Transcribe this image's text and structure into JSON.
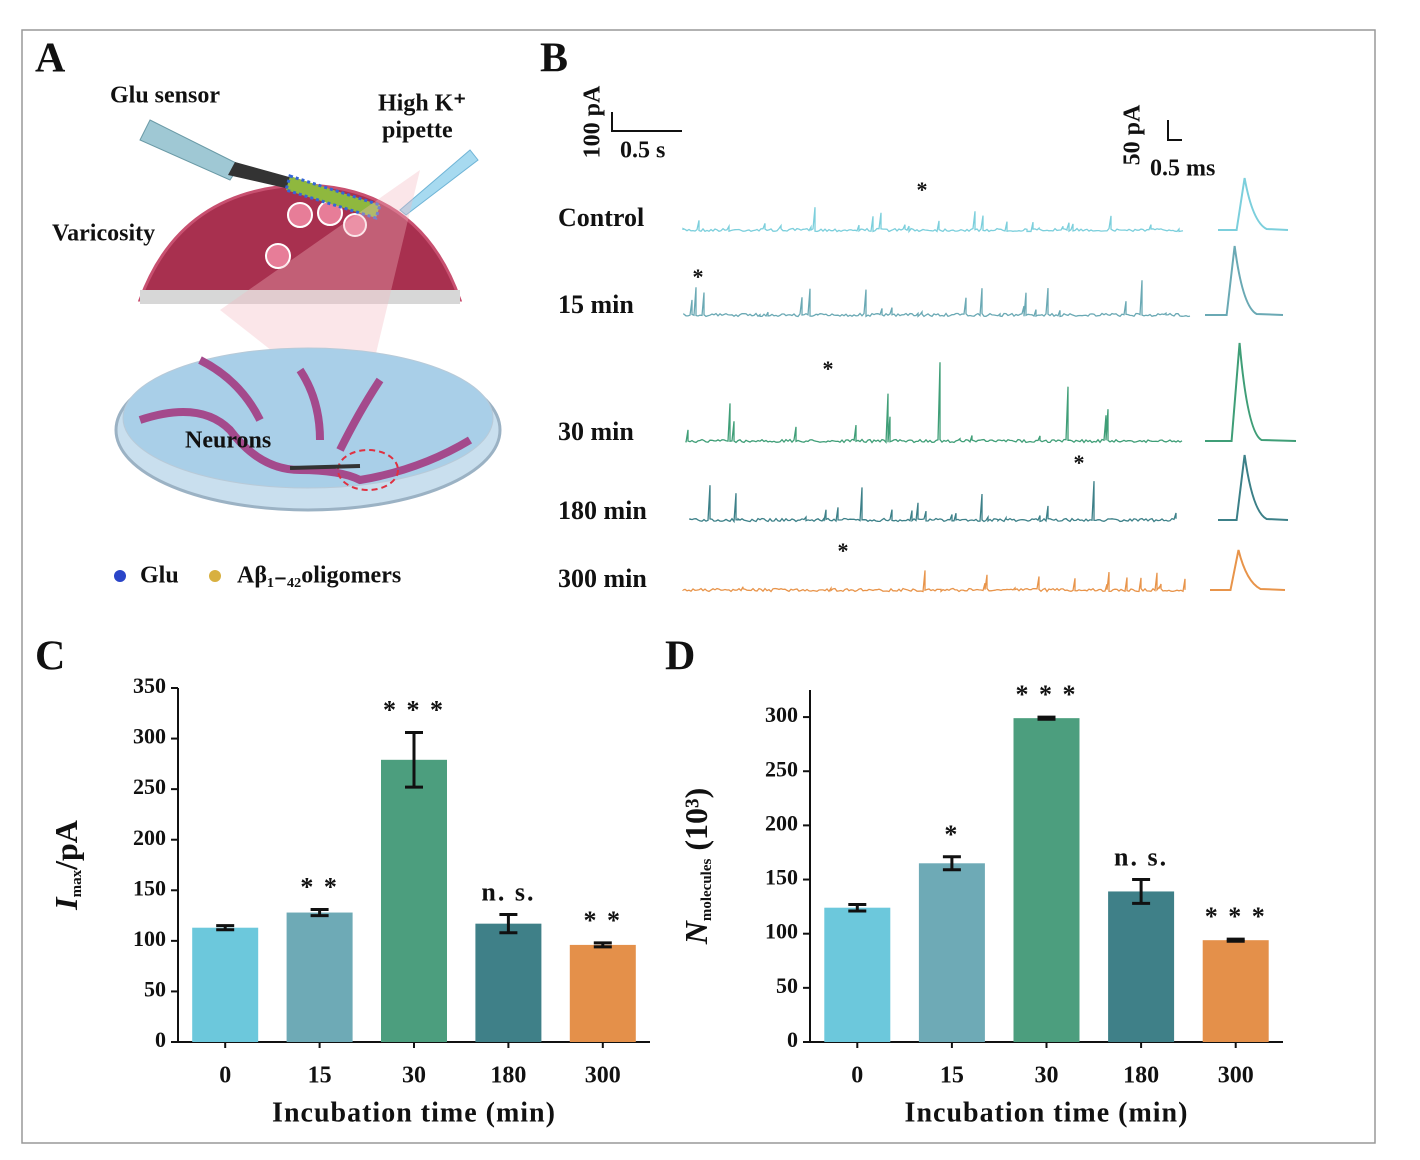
{
  "panel_labels": [
    "A",
    "B",
    "C",
    "D"
  ],
  "panel_a": {
    "sensor": "Glu sensor",
    "pipette_line1": "High K⁺",
    "pipette_line2": "pipette",
    "varicosity": "Varicosity",
    "neurons": "Neurons",
    "legend": [
      "Glu",
      "Aβ₁₋₄₂oligomers"
    ]
  },
  "panel_b": {
    "scale_trace": {
      "current": "100 pA",
      "time": "0.5 s"
    },
    "scale_spike": {
      "current": "50 pA",
      "time": "0.5 ms"
    },
    "traces": [
      {
        "label": "Control",
        "color": "#7ccfdc",
        "marker": "*"
      },
      {
        "label": "15 min",
        "color": "#6aa9b4",
        "marker": "*"
      },
      {
        "label": "30 min",
        "color": "#3f9e77",
        "marker": "*"
      },
      {
        "label": "180 min",
        "color": "#3c8088",
        "marker": "*"
      },
      {
        "label": "300 min",
        "color": "#e8944a",
        "marker": "*"
      }
    ]
  },
  "chart_data": [
    {
      "type": "bar",
      "categories": [
        "0",
        "15",
        "30",
        "180",
        "300"
      ],
      "values": [
        113,
        128,
        279,
        117,
        96
      ],
      "errors": [
        2,
        3,
        27,
        9,
        2
      ],
      "colors": [
        "#6cc8dc",
        "#6eaab6",
        "#4c9e7e",
        "#3f8088",
        "#e4904a"
      ],
      "annotations": [
        null,
        "* *",
        "* * *",
        "n. s.",
        "* *"
      ],
      "ylim": [
        0,
        350
      ],
      "yticks": [
        0,
        50,
        100,
        150,
        200,
        250,
        300,
        350
      ],
      "xlabel": "Incubation time (min)",
      "ylabel": {
        "symbol": "I",
        "subscript": "max",
        "rest": "/pA"
      }
    },
    {
      "type": "bar",
      "categories": [
        "0",
        "15",
        "30",
        "180",
        "300"
      ],
      "values": [
        124,
        165,
        299,
        139,
        94
      ],
      "errors": [
        3,
        6,
        1,
        11,
        1
      ],
      "colors": [
        "#6cc8dc",
        "#6eaab6",
        "#4c9e7e",
        "#3f8088",
        "#e4904a"
      ],
      "annotations": [
        null,
        "*",
        "* * *",
        "n. s.",
        "* * *"
      ],
      "ylim": [
        0,
        325
      ],
      "yticks": [
        0,
        50,
        100,
        150,
        200,
        250,
        300
      ],
      "xlabel": "Incubation time (min)",
      "ylabel": {
        "symbol": "N",
        "subscript": "molecules",
        "rest": " (10³)"
      }
    }
  ]
}
